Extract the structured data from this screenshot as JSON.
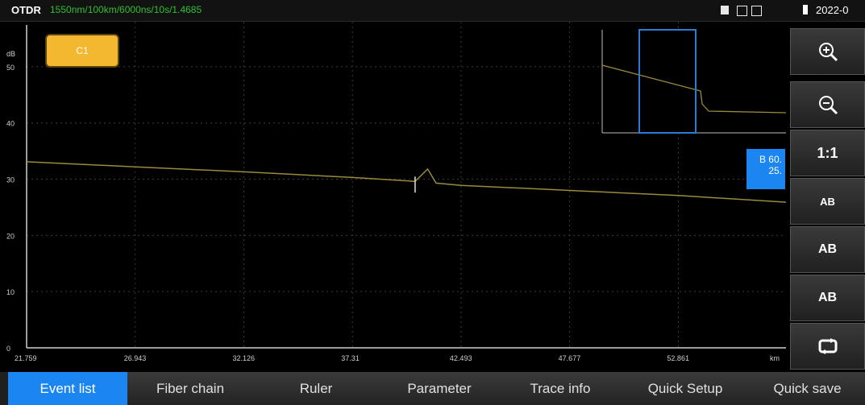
{
  "status_bar": {
    "app_title": "OTDR",
    "params": "1550nm/100km/6000ns/10s/1.4685",
    "date": "2022-0"
  },
  "cursor_label": "C1",
  "b_box": {
    "line1": "B 60.",
    "line2": "25."
  },
  "toolbar": {
    "zoom_in_icon": "zoom-in-icon",
    "zoom_out_icon": "zoom-out-icon",
    "ratio_label": "1:1",
    "ab_label": "AB",
    "ab_left_label": "AB",
    "ab_right_label": "AB",
    "fit_icon": "swap-icon"
  },
  "tabs": [
    {
      "label": "Event list",
      "active": true
    },
    {
      "label": "Fiber chain"
    },
    {
      "label": "Ruler"
    },
    {
      "label": "Parameter"
    },
    {
      "label": "Trace info"
    },
    {
      "label": "Quick Setup"
    },
    {
      "label": "Quick save"
    }
  ],
  "chart_data": {
    "type": "line",
    "ylabel": "dB",
    "xlabel": "km",
    "yticks": [
      "0",
      "10",
      "20",
      "30",
      "40",
      "50"
    ],
    "xticks": [
      "21.759",
      "26.943",
      "32.126",
      "37.31",
      "42.493",
      "47.677",
      "52.861"
    ],
    "xlim": [
      21.759,
      58.0
    ],
    "ylim": [
      0,
      58
    ],
    "grid": true,
    "series": [
      {
        "color": "#9a8a3a",
        "x": [
          21.759,
          26.943,
          32.126,
          37.31,
          40.3,
          40.9,
          41.3,
          42.493,
          47.677,
          52.861,
          58.0
        ],
        "y": [
          33.1,
          32.2,
          31.3,
          30.3,
          29.6,
          31.8,
          29.3,
          28.9,
          28.0,
          27.1,
          25.9
        ]
      }
    ],
    "colors": {
      "trace": "#9a8a3a",
      "grid": "#3a3a3a",
      "axis": "#cfcfcf",
      "window": "#2a7bd6"
    }
  }
}
